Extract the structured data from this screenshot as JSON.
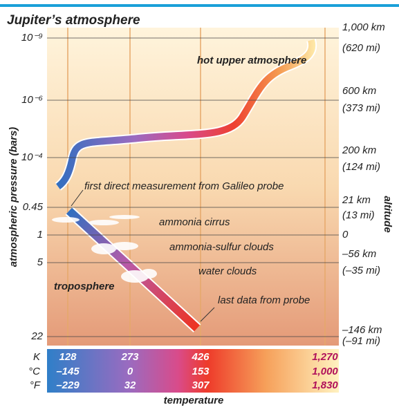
{
  "title": "Jupiter’s atmosphere",
  "y_axis_title": "atmospheric pressure (bars)",
  "right_axis_title": "altitude",
  "pressure_labels": [
    "10⁻⁹",
    "10⁻⁶",
    "10⁻⁴",
    "0.45",
    "1",
    "5",
    "22"
  ],
  "altitude_labels": [
    [
      "1,000 km",
      "(620 mi)"
    ],
    [
      "600 km",
      "(373 mi)"
    ],
    [
      "200 km",
      "(124 mi)"
    ],
    [
      "21 km",
      "(13 mi)"
    ],
    [
      "0"
    ],
    [
      "–56 km",
      "(–35 mi)"
    ],
    [
      "–146 km",
      "(–91 mi)"
    ]
  ],
  "annotations": {
    "upper": "hot upper atmosphere",
    "galileo": "first direct measurement from Galileo probe",
    "cirrus": "ammonia cirrus",
    "sulfur": "ammonia-sulfur clouds",
    "water": "water clouds",
    "troposphere": "troposphere",
    "last": "last data from probe"
  },
  "temperature_scale": {
    "title": "temperature",
    "units": [
      "K",
      "°C",
      "°F"
    ],
    "rows": [
      [
        "128",
        "273",
        "426",
        "1,270"
      ],
      [
        "–145",
        "0",
        "153",
        "1,000"
      ],
      [
        "–229",
        "32",
        "307",
        "1,830"
      ]
    ]
  }
}
